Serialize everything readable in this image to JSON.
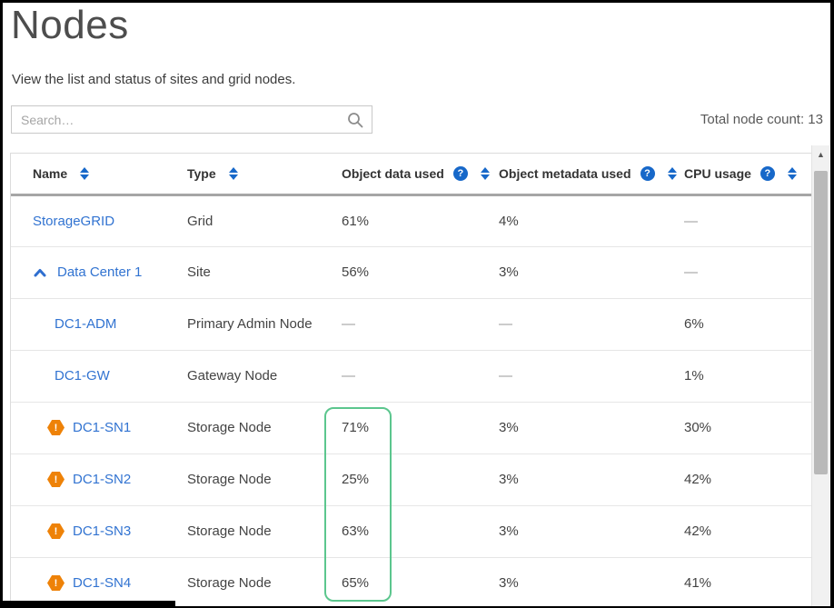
{
  "page": {
    "title": "Nodes",
    "subtitle": "View the list and status of sites and grid nodes.",
    "search_placeholder": "Search…",
    "total_label": "Total node count: 13"
  },
  "icons": {
    "help_glyph": "?",
    "warning_glyph": "!",
    "scroll_up_glyph": "▲"
  },
  "colors": {
    "link_blue": "#3173d1",
    "icon_blue": "#1768c9",
    "warning_orange": "#ee8208",
    "highlight_green": "#5cc68e"
  },
  "table": {
    "columns": [
      {
        "label": "Name",
        "sortable": true,
        "help": false
      },
      {
        "label": "Type",
        "sortable": true,
        "help": false
      },
      {
        "label": "Object data used",
        "sortable": true,
        "help": true
      },
      {
        "label": "Object metadata used",
        "sortable": true,
        "help": true
      },
      {
        "label": "CPU usage",
        "sortable": true,
        "help": true
      }
    ],
    "rows": [
      {
        "name": "StorageGRID",
        "type": "Grid",
        "object_data": "61%",
        "object_meta": "4%",
        "cpu": "—",
        "level": "root",
        "icon": null
      },
      {
        "name": "Data Center 1",
        "type": "Site",
        "object_data": "56%",
        "object_meta": "3%",
        "cpu": "—",
        "level": "site",
        "icon": "chevron-up"
      },
      {
        "name": "DC1-ADM",
        "type": "Primary Admin Node",
        "object_data": "—",
        "object_meta": "—",
        "cpu": "6%",
        "level": "node",
        "icon": null
      },
      {
        "name": "DC1-GW",
        "type": "Gateway Node",
        "object_data": "—",
        "object_meta": "—",
        "cpu": "1%",
        "level": "node",
        "icon": null
      },
      {
        "name": "DC1-SN1",
        "type": "Storage Node",
        "object_data": "71%",
        "object_meta": "3%",
        "cpu": "30%",
        "level": "node",
        "icon": "warning"
      },
      {
        "name": "DC1-SN2",
        "type": "Storage Node",
        "object_data": "25%",
        "object_meta": "3%",
        "cpu": "42%",
        "level": "node",
        "icon": "warning"
      },
      {
        "name": "DC1-SN3",
        "type": "Storage Node",
        "object_data": "63%",
        "object_meta": "3%",
        "cpu": "42%",
        "level": "node",
        "icon": "warning"
      },
      {
        "name": "DC1-SN4",
        "type": "Storage Node",
        "object_data": "65%",
        "object_meta": "3%",
        "cpu": "41%",
        "level": "node",
        "icon": "warning"
      }
    ]
  }
}
